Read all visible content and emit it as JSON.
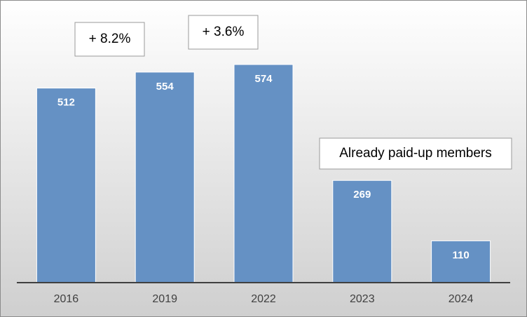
{
  "chart_data": {
    "type": "bar",
    "categories": [
      "2016",
      "2019",
      "2022",
      "2023",
      "2024"
    ],
    "values": [
      512,
      554,
      574,
      269,
      110
    ],
    "color": "#6591c4",
    "annotations": [
      "+ 8.2%",
      "+ 3.6%",
      "Already paid-up members"
    ]
  }
}
